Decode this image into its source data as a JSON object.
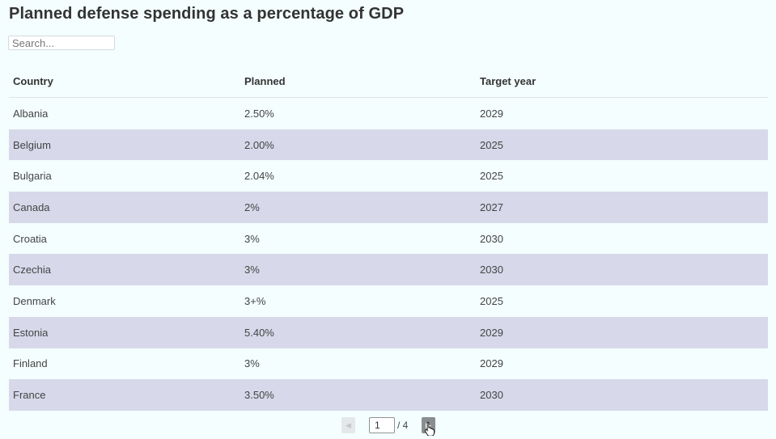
{
  "title": "Planned defense spending as a percentage of GDP",
  "search": {
    "placeholder": "Search..."
  },
  "table": {
    "headers": [
      "Country",
      "Planned",
      "Target year"
    ],
    "rows": [
      [
        "Albania",
        "2.50%",
        "2029"
      ],
      [
        "Belgium",
        "2.00%",
        "2025"
      ],
      [
        "Bulgaria",
        "2.04%",
        "2025"
      ],
      [
        "Canada",
        "2%",
        "2027"
      ],
      [
        "Croatia",
        "3%",
        "2030"
      ],
      [
        "Czechia",
        "3%",
        "2030"
      ],
      [
        "Denmark",
        "3+%",
        "2025"
      ],
      [
        "Estonia",
        "5.40%",
        "2029"
      ],
      [
        "Finland",
        "3%",
        "2029"
      ],
      [
        "France",
        "3.50%",
        "2030"
      ]
    ]
  },
  "pagination": {
    "prev_icon": "chevron-left-icon",
    "next_icon": "chevron-right-icon",
    "current_page": "1",
    "total_label": "/ 4"
  },
  "colors": {
    "background": "#f4fefe",
    "alt_row": "#d7d9ea"
  }
}
